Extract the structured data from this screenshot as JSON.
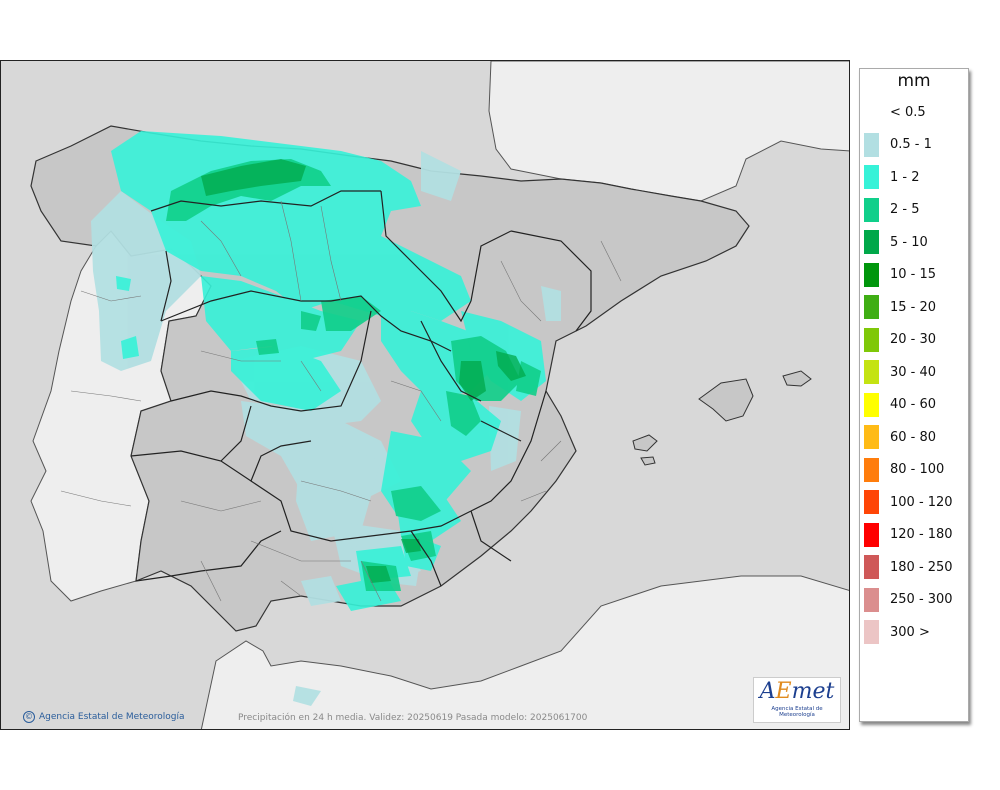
{
  "legend": {
    "unit": "mm",
    "items": [
      {
        "label": "< 0.5",
        "color": "#ffffff"
      },
      {
        "label": "0.5 - 1",
        "color": "#b2dfe2"
      },
      {
        "label": "1 - 2",
        "color": "#36f2d8"
      },
      {
        "label": "2 - 5",
        "color": "#10cf8a"
      },
      {
        "label": "5 - 10",
        "color": "#00a84a"
      },
      {
        "label": "10 - 15",
        "color": "#00960c"
      },
      {
        "label": "15 - 20",
        "color": "#3fae14"
      },
      {
        "label": "20 - 30",
        "color": "#7fc808"
      },
      {
        "label": "30 - 40",
        "color": "#c4e312"
      },
      {
        "label": "40 - 60",
        "color": "#ffff00"
      },
      {
        "label": "60 - 80",
        "color": "#ffbb16"
      },
      {
        "label": "80 - 100",
        "color": "#ff7d0c"
      },
      {
        "label": "100 - 120",
        "color": "#ff4506"
      },
      {
        "label": "120 - 180",
        "color": "#ff0000"
      },
      {
        "label": "180 - 250",
        "color": "#cf5858"
      },
      {
        "label": "250 - 300",
        "color": "#db8e8e"
      },
      {
        "label": "300 >",
        "color": "#ecc5c5"
      }
    ]
  },
  "map": {
    "credit": "Agencia Estatal de Meteorología",
    "caption": "Precipitación en 24 h media. Validez: 20250619 Pasada modelo: 2025061700",
    "credit_icon": "copyright-icon",
    "logo": {
      "mark_a": "A",
      "mark_e": "E",
      "mark_rest": "met",
      "subtitle": "Agencia Estatal de Meteorología"
    }
  }
}
